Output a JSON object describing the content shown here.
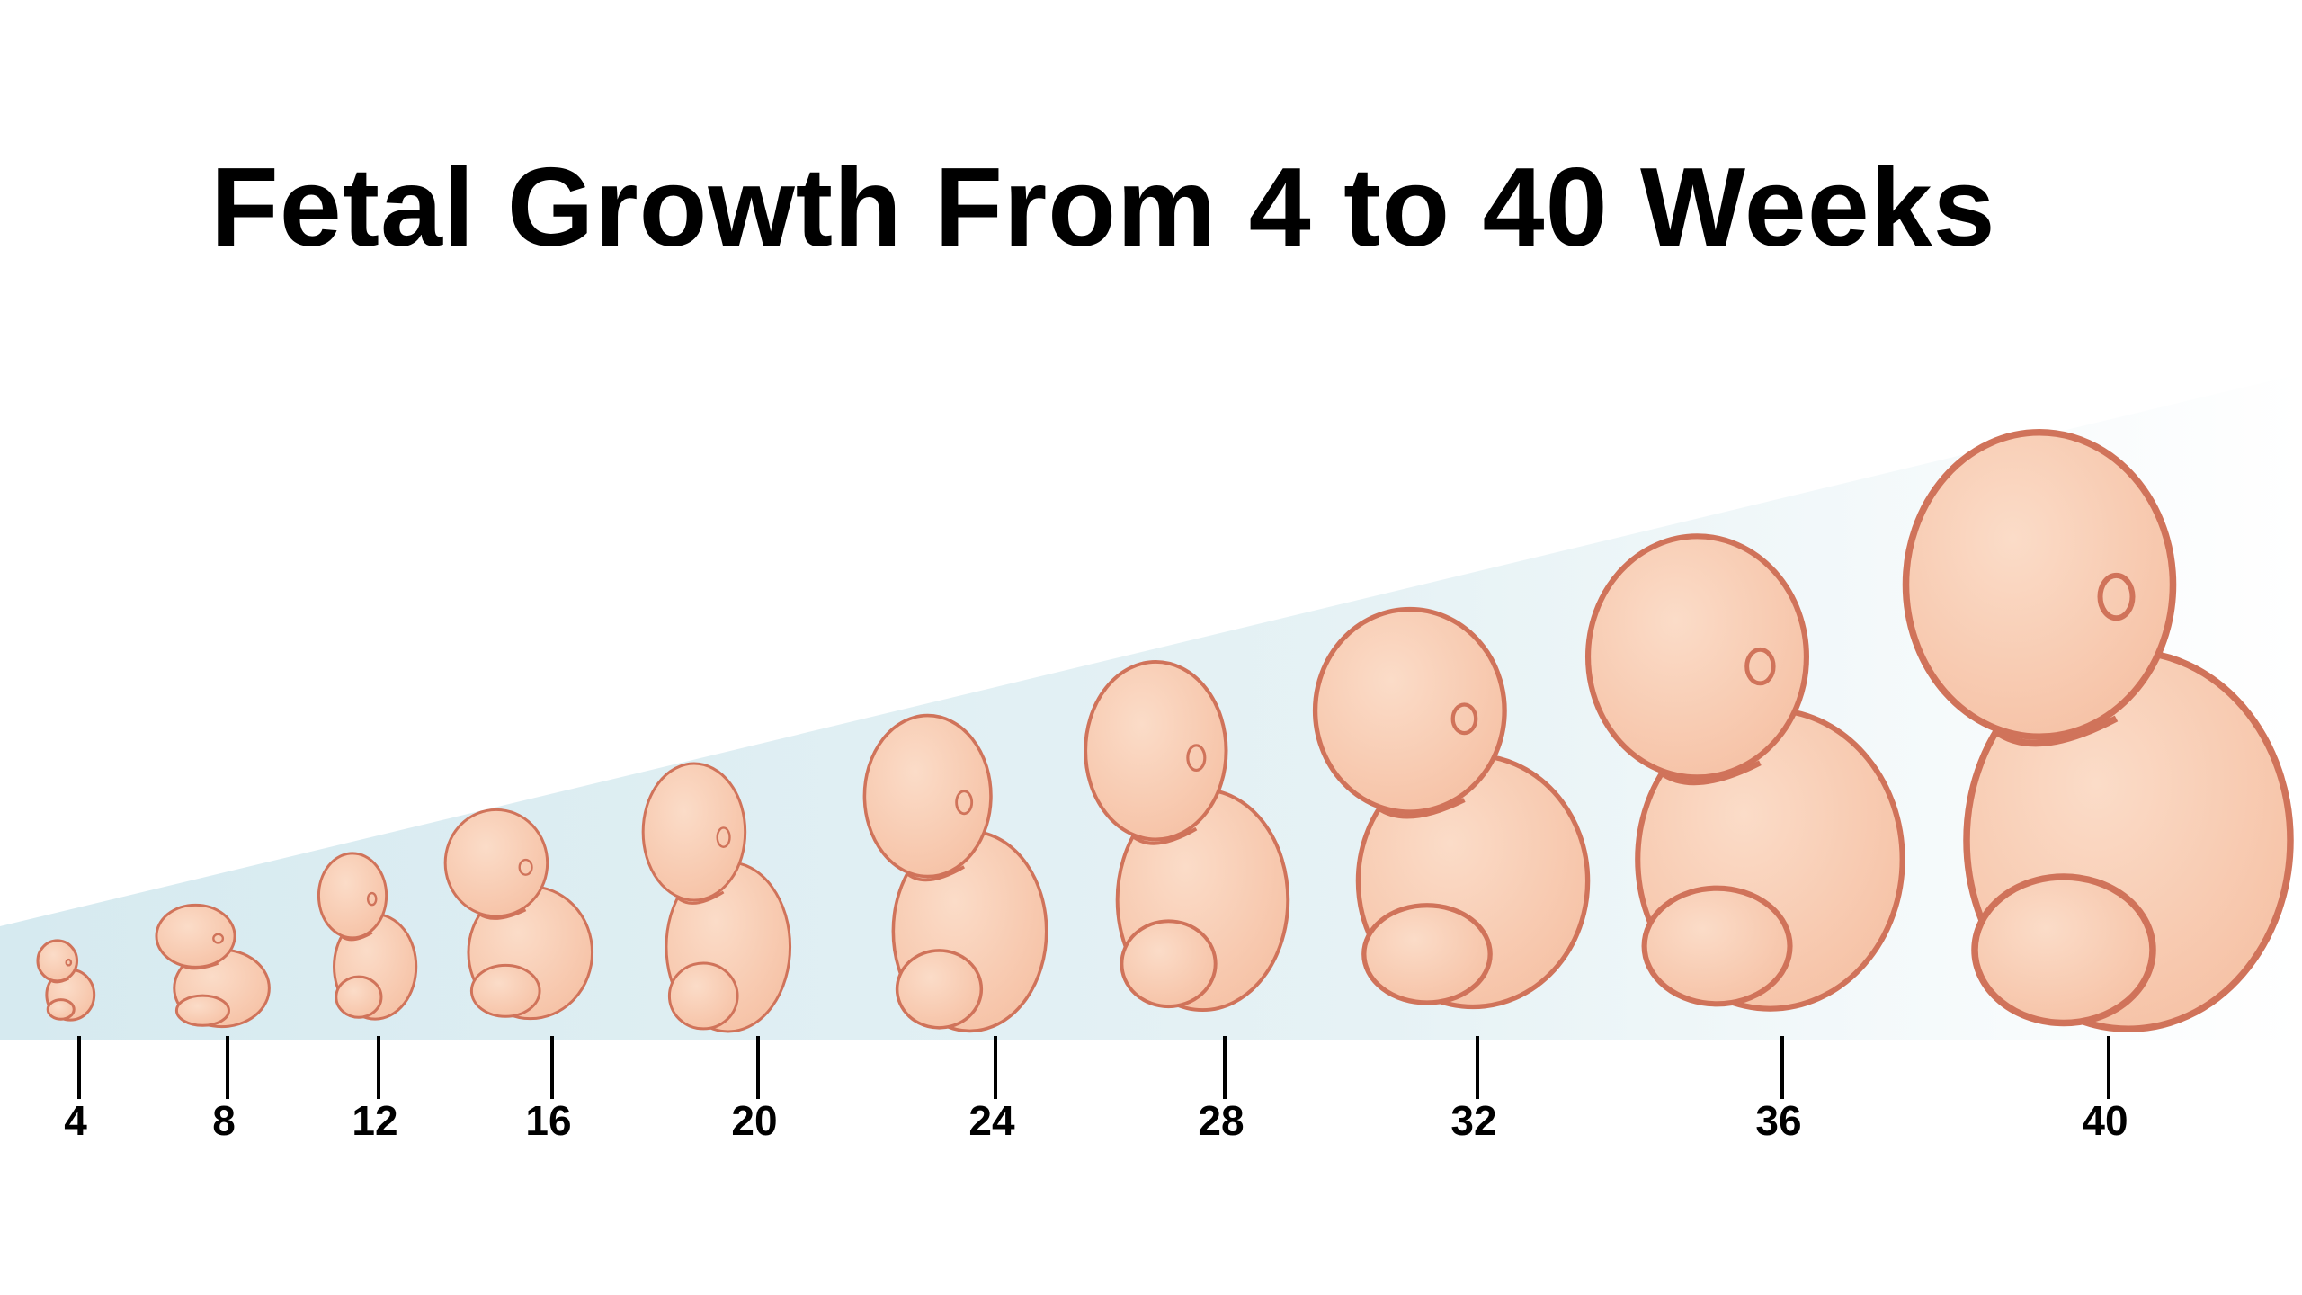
{
  "title": "Fetal Growth From 4 to 40 Weeks",
  "weeks": [
    "4",
    "8",
    "12",
    "16",
    "20",
    "24",
    "28",
    "32",
    "36",
    "40"
  ],
  "colors": {
    "skin": "#f6c2a6",
    "skin_highlight": "#fbdcc8",
    "outline": "#d0735a",
    "band_left": "#d6eaf0",
    "band_right": "#ffffff",
    "tick": "#000000"
  }
}
